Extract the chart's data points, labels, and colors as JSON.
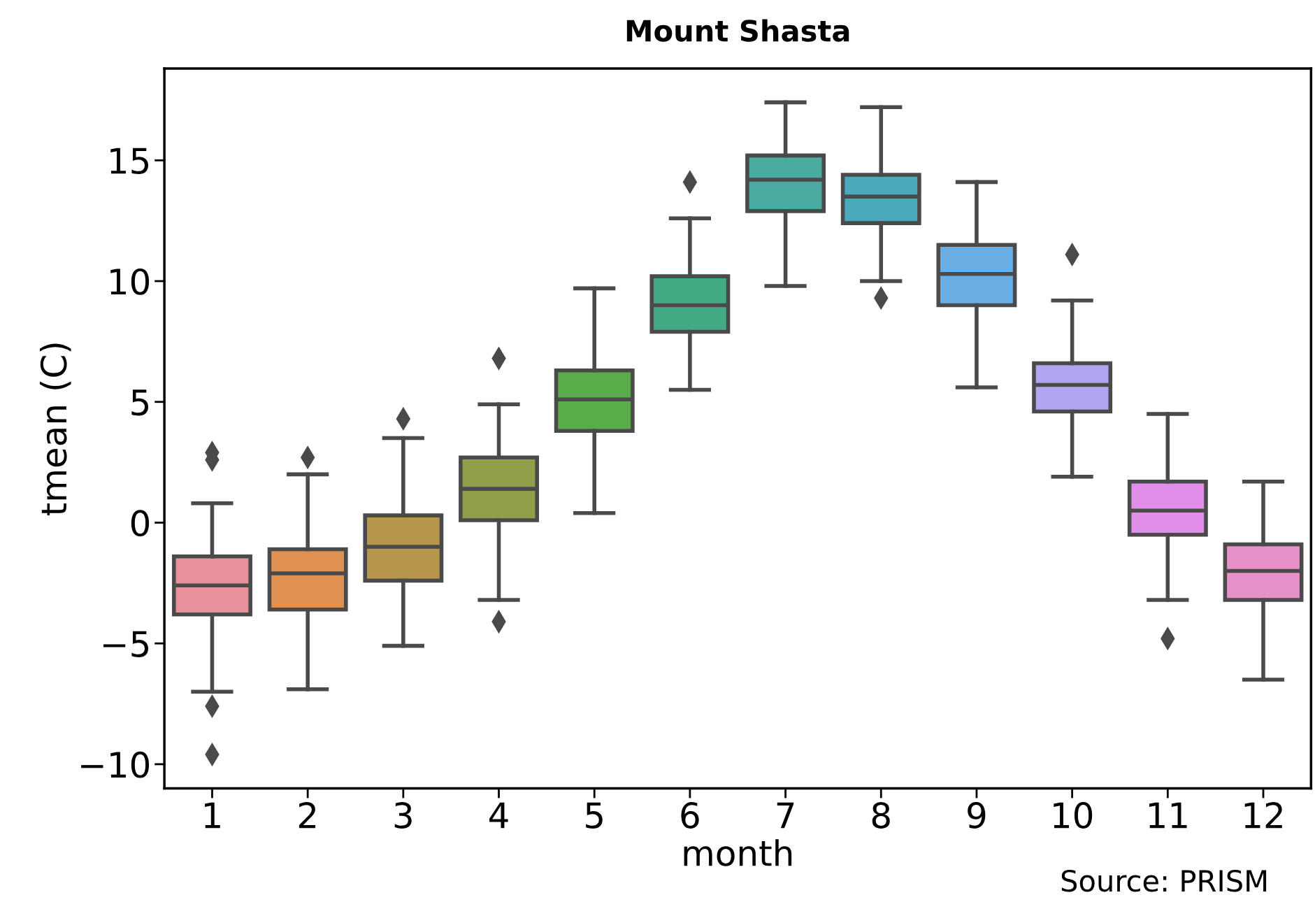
{
  "chart_data": {
    "type": "box",
    "title": "Mount Shasta",
    "xlabel": "month",
    "ylabel": "tmean (C)",
    "categories": [
      "1",
      "2",
      "3",
      "4",
      "5",
      "6",
      "7",
      "8",
      "9",
      "10",
      "11",
      "12"
    ],
    "colors": [
      "#e8919b",
      "#e0904f",
      "#b5964a",
      "#90a04a",
      "#5aac4a",
      "#42ab84",
      "#4aaba0",
      "#4aa9bb",
      "#6aaee6",
      "#b2a4f0",
      "#e08ee8",
      "#e890c8"
    ],
    "boxes": [
      {
        "low": -7.0,
        "q1": -3.8,
        "median": -2.6,
        "q3": -1.4,
        "high": 0.8,
        "outliers": [
          2.9,
          2.6,
          -7.6,
          -9.6
        ]
      },
      {
        "low": -6.9,
        "q1": -3.6,
        "median": -2.1,
        "q3": -1.1,
        "high": 2.0,
        "outliers": [
          2.7
        ]
      },
      {
        "low": -5.1,
        "q1": -2.4,
        "median": -1.0,
        "q3": 0.3,
        "high": 3.5,
        "outliers": [
          4.3
        ]
      },
      {
        "low": -3.2,
        "q1": 0.1,
        "median": 1.4,
        "q3": 2.7,
        "high": 4.9,
        "outliers": [
          6.8,
          -4.1
        ]
      },
      {
        "low": 0.4,
        "q1": 3.8,
        "median": 5.1,
        "q3": 6.3,
        "high": 9.7
      },
      {
        "low": 5.5,
        "q1": 7.9,
        "median": 9.0,
        "q3": 10.2,
        "high": 12.6,
        "outliers": [
          14.1
        ]
      },
      {
        "low": 9.8,
        "q1": 12.9,
        "median": 14.2,
        "q3": 15.2,
        "high": 17.4
      },
      {
        "low": 10.0,
        "q1": 12.4,
        "median": 13.5,
        "q3": 14.4,
        "high": 17.2,
        "outliers": [
          9.3
        ]
      },
      {
        "low": 5.6,
        "q1": 9.0,
        "median": 10.3,
        "q3": 11.5,
        "high": 14.1
      },
      {
        "low": 1.9,
        "q1": 4.6,
        "median": 5.7,
        "q3": 6.6,
        "high": 9.2,
        "outliers": [
          11.1
        ]
      },
      {
        "low": -3.2,
        "q1": -0.5,
        "median": 0.5,
        "q3": 1.7,
        "high": 4.5,
        "outliers": [
          -4.8
        ]
      },
      {
        "low": -6.5,
        "q1": -3.2,
        "median": -2.0,
        "q3": -0.9,
        "high": 1.7
      }
    ],
    "ylim": [
      -11.0,
      18.8
    ],
    "yticks": [
      -10,
      -5,
      0,
      5,
      10,
      15
    ],
    "marker": "diamond",
    "grid": false,
    "annotations": [
      "Source: PRISM"
    ]
  }
}
